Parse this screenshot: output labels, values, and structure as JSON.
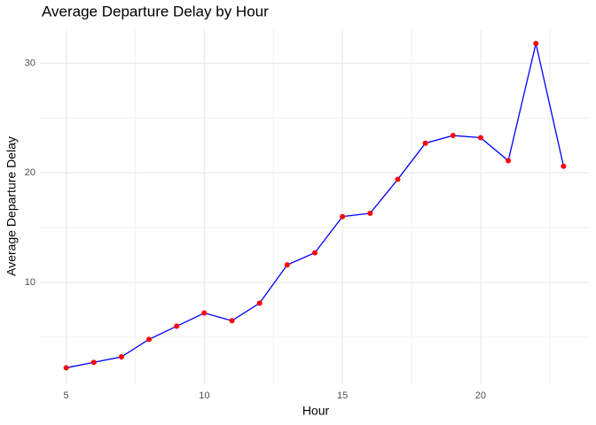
{
  "chart_data": {
    "type": "line",
    "title": "Average Departure Delay by Hour",
    "x_label": "Hour",
    "y_label": "Average Departure Delay",
    "x": [
      5,
      6,
      7,
      8,
      9,
      10,
      11,
      12,
      13,
      14,
      15,
      16,
      17,
      18,
      19,
      20,
      21,
      22,
      23
    ],
    "values": [
      2.2,
      2.7,
      3.2,
      4.8,
      6.0,
      7.2,
      6.5,
      8.1,
      11.6,
      12.7,
      16.0,
      16.3,
      19.4,
      22.7,
      23.4,
      23.2,
      21.1,
      31.8,
      20.6
    ],
    "line_color": "#0000ff",
    "point_color": "#ff0000",
    "xlim": [
      4.05,
      23.95
    ],
    "ylim": [
      0.7,
      33.1
    ],
    "xticks": [
      5,
      10,
      15,
      20
    ],
    "yticks": [
      10,
      20,
      30
    ],
    "grid": true
  }
}
